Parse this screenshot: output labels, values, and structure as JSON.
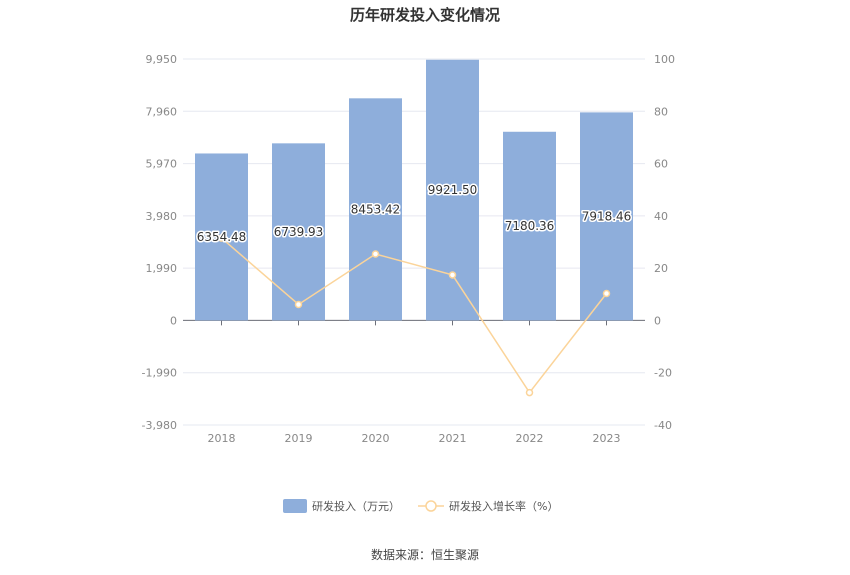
{
  "chart_data": {
    "type": "bar",
    "title": "历年研发投入变化情况",
    "categories": [
      "2018",
      "2019",
      "2020",
      "2021",
      "2022",
      "2023"
    ],
    "series": [
      {
        "name": "研发投入（万元）",
        "type": "bar",
        "axis": "left",
        "color": "#8eaedb",
        "values": [
          6354.48,
          6739.93,
          8453.42,
          9921.5,
          7180.36,
          7918.46
        ],
        "labels": [
          "6354.48",
          "6739.93",
          "8453.42",
          "9921.50",
          "7180.36",
          "7918.46"
        ]
      },
      {
        "name": "研发投入增长率（%）",
        "type": "line",
        "axis": "right",
        "color": "#fbd49a",
        "values": [
          31.5,
          6.1,
          25.4,
          17.4,
          -27.6,
          10.3
        ]
      }
    ],
    "y_left": {
      "ticks": [
        "9,950",
        "7,960",
        "5,970",
        "3,980",
        "1,990",
        "0",
        "-1,990",
        "-3,980"
      ],
      "ylim": [
        -3980,
        9950
      ]
    },
    "y_right": {
      "ticks": [
        "100",
        "80",
        "60",
        "40",
        "20",
        "0",
        "-20",
        "-40"
      ],
      "ylim": [
        -40,
        100
      ]
    },
    "grid": true,
    "legend_position": "bottom-center"
  },
  "source": "数据来源：恒生聚源"
}
